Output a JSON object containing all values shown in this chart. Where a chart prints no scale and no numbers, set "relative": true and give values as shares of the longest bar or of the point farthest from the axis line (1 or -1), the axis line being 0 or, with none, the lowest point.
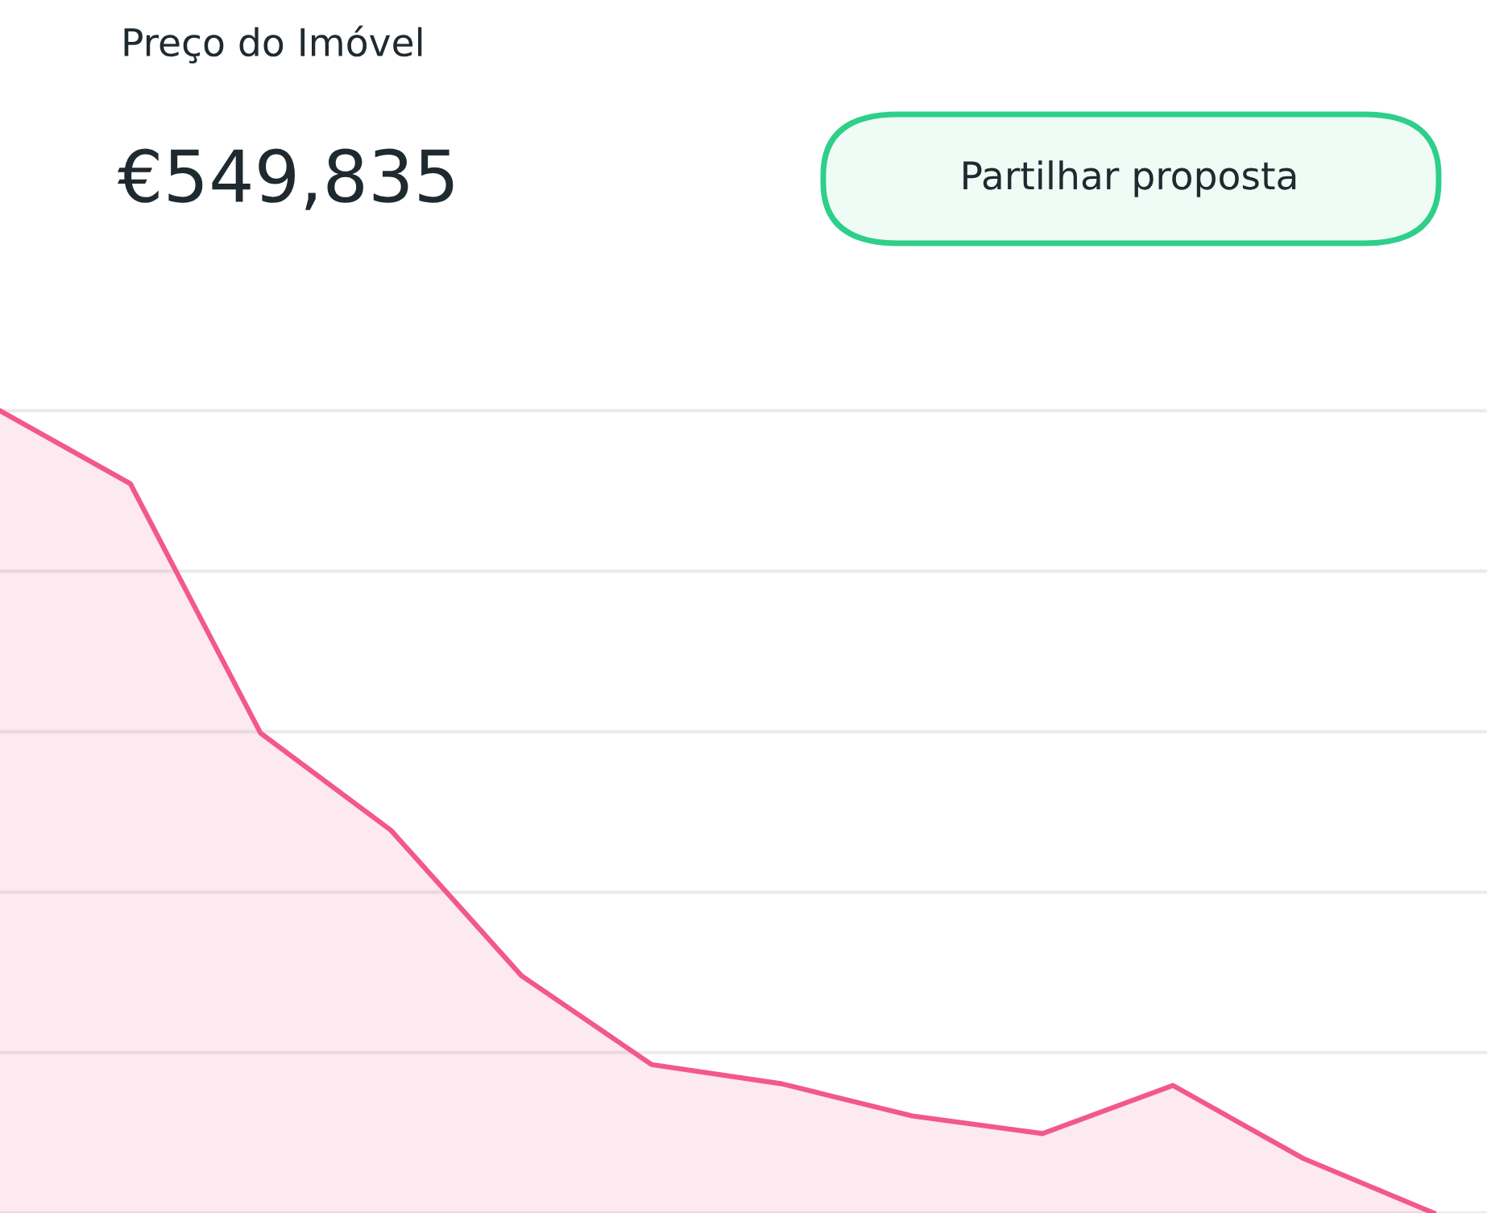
{
  "chart_data": {
    "type": "area",
    "title": "Preço do Imóvel",
    "subtitle": "€549,835",
    "annotations": [
      "Partilhar proposta"
    ],
    "relative": true,
    "grid": "y",
    "categories": [
      null,
      null,
      null,
      null,
      null,
      null,
      null,
      null,
      null,
      null,
      null,
      null
    ],
    "series": [
      {
        "color": "#f2588b",
        "values": [
          1,
          0.909,
          0.598,
          0.477,
          0.296,
          0.185,
          0.161,
          0.121,
          0.099,
          0.159,
          0.068,
          0
        ]
      }
    ]
  }
}
